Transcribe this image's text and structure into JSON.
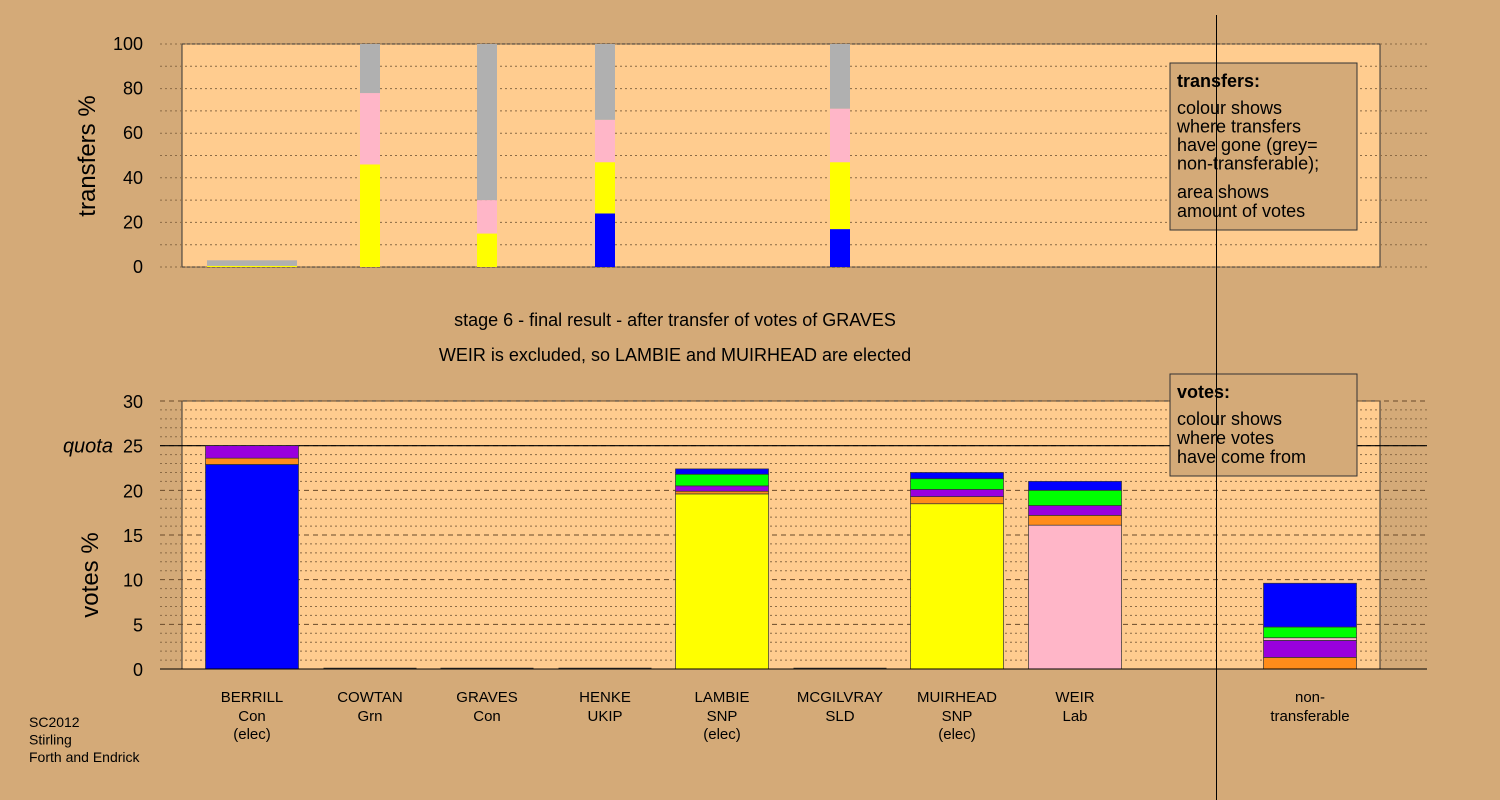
{
  "colors": {
    "background": "#d4aa78",
    "panel": "#ffcc8f",
    "parties": {
      "Con": "#0000ff",
      "Grn": "#00ff00",
      "UKIP": "#9900dd",
      "SNP": "#ffff00",
      "SLD": "#ff8c1a",
      "Lab": "#ffb6c8",
      "non-transferable": "#b0b0b0"
    }
  },
  "caption": [
    "SC2012",
    "Stirling",
    "Forth and Endrick"
  ],
  "chart_data": [
    {
      "type": "bar",
      "stacked": true,
      "name": "transfers",
      "ylabel": "transfers %",
      "ylim": [
        0,
        100
      ],
      "yticks": [
        0,
        20,
        40,
        60,
        80,
        100
      ],
      "grid": true,
      "candidates": [
        "BERRILL",
        "COWTAN",
        "GRAVES",
        "HENKE",
        "LAMBIE",
        "MCGILVRAY",
        "MUIRHEAD",
        "WEIR"
      ],
      "bars": [
        {
          "candidate": "BERRILL",
          "segments": [
            {
              "party": "SNP",
              "value": 0.5
            },
            {
              "party": "non-transferable",
              "value": 2.5
            }
          ]
        },
        {
          "candidate": "COWTAN",
          "segments": [
            {
              "party": "SNP",
              "value": 46
            },
            {
              "party": "Lab",
              "value": 32
            },
            {
              "party": "non-transferable",
              "value": 22
            }
          ]
        },
        {
          "candidate": "GRAVES",
          "segments": [
            {
              "party": "SNP",
              "value": 15
            },
            {
              "party": "Lab",
              "value": 15
            },
            {
              "party": "non-transferable",
              "value": 70
            }
          ]
        },
        {
          "candidate": "HENKE",
          "segments": [
            {
              "party": "Con",
              "value": 24
            },
            {
              "party": "SNP",
              "value": 23
            },
            {
              "party": "Lab",
              "value": 19
            },
            {
              "party": "non-transferable",
              "value": 34
            }
          ]
        },
        {
          "candidate": "MCGILVRAY",
          "segments": [
            {
              "party": "Con",
              "value": 17
            },
            {
              "party": "SNP",
              "value": 30
            },
            {
              "party": "Lab",
              "value": 24
            },
            {
              "party": "non-transferable",
              "value": 29
            }
          ]
        }
      ],
      "legend": {
        "title": "transfers:",
        "lines1": [
          "colour shows",
          "where transfers",
          "have gone (grey=",
          "non-transferable);"
        ],
        "lines2": [
          "area shows",
          "amount of votes"
        ]
      }
    },
    {
      "type": "bar",
      "stacked": true,
      "name": "votes",
      "ylabel": "votes %",
      "ylim": [
        0,
        30
      ],
      "yticks": [
        0,
        5,
        10,
        15,
        20,
        25,
        30
      ],
      "grid": true,
      "quota": 25,
      "quota_label": "quota",
      "candidates": [
        {
          "name": "BERRILL",
          "party": "Con",
          "status": "(elec)",
          "segments": [
            {
              "party": "Con",
              "value": 22.9
            },
            {
              "party": "SLD",
              "value": 0.7
            },
            {
              "party": "UKIP",
              "value": 1.4
            }
          ]
        },
        {
          "name": "COWTAN",
          "party": "Grn",
          "status": "",
          "segments": []
        },
        {
          "name": "GRAVES",
          "party": "Con",
          "status": "",
          "segments": []
        },
        {
          "name": "HENKE",
          "party": "UKIP",
          "status": "",
          "segments": []
        },
        {
          "name": "LAMBIE",
          "party": "SNP",
          "status": "(elec)",
          "segments": [
            {
              "party": "SNP",
              "value": 19.6
            },
            {
              "party": "SLD",
              "value": 0.3
            },
            {
              "party": "UKIP",
              "value": 0.6
            },
            {
              "party": "Grn",
              "value": 1.3
            },
            {
              "party": "Con",
              "value": 0.6
            }
          ]
        },
        {
          "name": "MCGILVRAY",
          "party": "SLD",
          "status": "",
          "segments": []
        },
        {
          "name": "MUIRHEAD",
          "party": "SNP",
          "status": "(elec)",
          "segments": [
            {
              "party": "SNP",
              "value": 18.5
            },
            {
              "party": "SLD",
              "value": 0.8
            },
            {
              "party": "UKIP",
              "value": 0.8
            },
            {
              "party": "Grn",
              "value": 1.2
            },
            {
              "party": "Con",
              "value": 0.7
            }
          ]
        },
        {
          "name": "WEIR",
          "party": "Lab",
          "status": "",
          "segments": [
            {
              "party": "Lab",
              "value": 16.1
            },
            {
              "party": "SLD",
              "value": 1.1
            },
            {
              "party": "UKIP",
              "value": 1.1
            },
            {
              "party": "Grn",
              "value": 1.7
            },
            {
              "party": "Con",
              "value": 1.0
            }
          ]
        }
      ],
      "nontransferable": {
        "label": [
          "non-",
          "transferable"
        ],
        "segments": [
          {
            "party": "SLD",
            "value": 1.3
          },
          {
            "party": "UKIP",
            "value": 1.9
          },
          {
            "party": "Lab",
            "value": 0.3
          },
          {
            "party": "Grn",
            "value": 1.2
          },
          {
            "party": "Con",
            "value": 4.9
          }
        ]
      },
      "legend": {
        "title": "votes:",
        "lines": [
          "colour shows",
          "where votes",
          "have come from"
        ]
      }
    }
  ],
  "stage_text": {
    "line1": "stage 6 - final result - after transfer of votes of GRAVES",
    "line2": "WEIR is excluded, so LAMBIE and MUIRHEAD are elected"
  }
}
